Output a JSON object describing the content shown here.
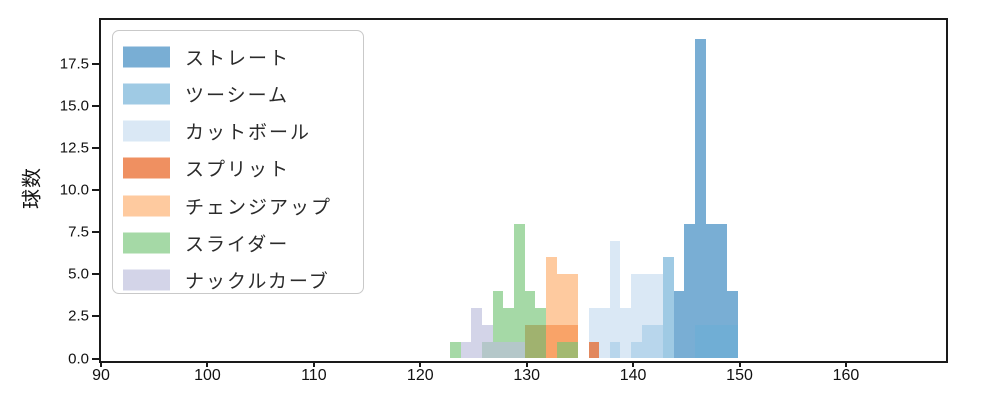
{
  "chart_data": {
    "type": "bar",
    "subtype": "overlapping-histogram",
    "title": "",
    "xlabel": "",
    "ylabel": "球数",
    "grid": false,
    "legend_position": "upper-left",
    "bin_width": 1,
    "bar_alpha": 0.65,
    "xlim": [
      90,
      169.4
    ],
    "ylim": [
      0,
      20.1
    ],
    "xticks": [
      {
        "value": 90,
        "label": "90"
      },
      {
        "value": 100,
        "label": "100"
      },
      {
        "value": 110,
        "label": "110"
      },
      {
        "value": 120,
        "label": "120"
      },
      {
        "value": 130,
        "label": "130"
      },
      {
        "value": 140,
        "label": "140"
      },
      {
        "value": 150,
        "label": "150"
      },
      {
        "value": 160,
        "label": "160"
      }
    ],
    "yticks": [
      {
        "value": 0,
        "label": "0.0"
      },
      {
        "value": 2.5,
        "label": "2.5"
      },
      {
        "value": 5,
        "label": "5.0"
      },
      {
        "value": 7.5,
        "label": "7.5"
      },
      {
        "value": 10,
        "label": "10.0"
      },
      {
        "value": 12.5,
        "label": "12.5"
      },
      {
        "value": 15,
        "label": "15.0"
      },
      {
        "value": 17.5,
        "label": "17.5"
      }
    ],
    "series": [
      {
        "label": "ストレート",
        "color": "#3182BD",
        "bin_start": 144,
        "counts": [
          4,
          8,
          19,
          8,
          8,
          4
        ]
      },
      {
        "label": "ツーシーム",
        "color": "#6BAED6",
        "bin_start": 138,
        "counts": [
          1,
          0,
          1,
          2,
          2,
          6,
          0,
          0,
          2,
          2,
          2,
          2
        ]
      },
      {
        "label": "カットボール",
        "color": "#C6DBEF",
        "bin_start": 136,
        "counts": [
          3,
          3,
          7,
          3,
          5,
          5,
          5
        ]
      },
      {
        "label": "スプリット",
        "color": "#E6550D",
        "bin_start": 130,
        "counts": [
          2,
          2,
          2,
          2,
          2,
          0,
          1
        ]
      },
      {
        "label": "チェンジアップ",
        "color": "#FDAE6B",
        "bin_start": 132,
        "counts": [
          6,
          5,
          5
        ]
      },
      {
        "label": "スライダー",
        "color": "#74C476",
        "bin_start": 123,
        "counts": [
          1,
          0,
          0,
          1,
          4,
          3,
          8,
          4,
          3,
          0,
          1,
          1
        ]
      },
      {
        "label": "ナックルカーブ",
        "color": "#BCBDDC",
        "bin_start": 124,
        "counts": [
          1,
          3,
          2,
          1,
          1,
          1
        ]
      }
    ]
  }
}
